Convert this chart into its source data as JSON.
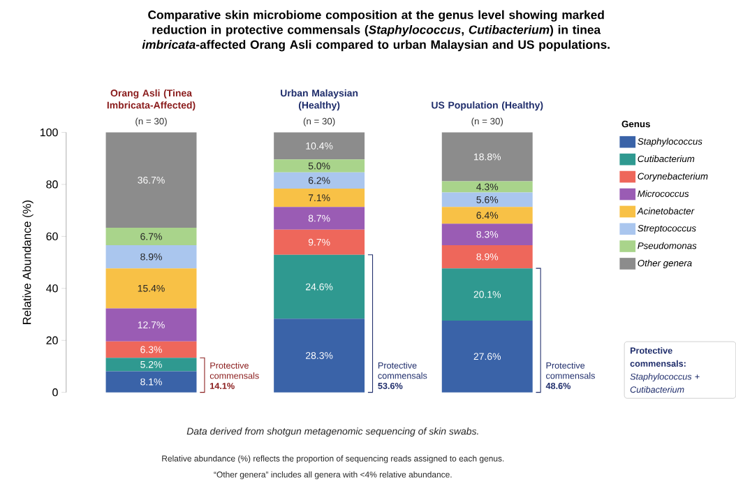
{
  "chart_data": {
    "type": "bar",
    "stacked": true,
    "title": "Comparative skin microbiome composition at the genus level showing marked reduction in protective commensals (*Staphylococcus*, *Cutibacterium*) in tinea *imbricata*-affected Orang Asli compared to urban Malaysian and US populations.",
    "ylabel": "Relative Abundance (%)",
    "legend_title": "Genus",
    "legend": "right",
    "categories": [
      "Orang Asli (Tinea Imbricata-Affected)",
      "Urban Malaysian (Healthy)",
      "US Population (Healthy)"
    ],
    "ylim": [
      0,
      100
    ],
    "yticks": [
      0,
      20,
      40,
      60,
      80,
      100
    ],
    "series": [
      {
        "name": "Staphylococcus",
        "color": "#3a63a8",
        "values": [
          8.1,
          28.3,
          27.6
        ],
        "value_labels": [
          "8.1%",
          "28.3%",
          "27.6%"
        ]
      },
      {
        "name": "Cutibacterium",
        "color": "#2f9990",
        "values": [
          5.2,
          24.6,
          20.1
        ],
        "value_labels": [
          "5.2%",
          "24.6%",
          "20.1%"
        ]
      },
      {
        "name": "Corynebacterium",
        "color": "#ee675b",
        "values": [
          6.3,
          9.7,
          8.9
        ],
        "value_labels": [
          "6.3%",
          "9.7%",
          "8.9%"
        ]
      },
      {
        "name": "Micrococcus",
        "color": "#9a5cb4",
        "values": [
          12.7,
          8.7,
          8.3
        ],
        "value_labels": [
          "12.7%",
          "8.7%",
          "8.3%"
        ]
      },
      {
        "name": "Acinetobacter",
        "color": "#f8c146",
        "values": [
          15.4,
          7.1,
          6.4
        ],
        "value_labels": [
          "15.4%",
          "7.1%",
          "6.4%"
        ]
      },
      {
        "name": "Streptococcus",
        "color": "#aac6ee",
        "values": [
          8.9,
          6.2,
          5.6
        ],
        "value_labels": [
          "8.9%",
          "6.2%",
          "5.6%"
        ]
      },
      {
        "name": "Pseudomonas",
        "color": "#a9d48b",
        "values": [
          6.7,
          5.0,
          4.3
        ],
        "value_labels": [
          "6.7%",
          "5.0%",
          "4.3%"
        ]
      },
      {
        "name": "Other genera",
        "color": "#8c8c8c",
        "values": [
          36.7,
          10.4,
          18.8
        ],
        "value_labels": [
          "36.7%",
          "10.4%",
          "18.8%"
        ]
      }
    ],
    "annotations": [
      "(n = 30)",
      "(n = 30)",
      "(n = 30)",
      "Protective commensals **14.1%**",
      "Protective commensals **53.6%**",
      "Protective commensals **48.6%**",
      "**Protective commensals:** *Staphylococcus* + *Cutibacterium*",
      "*Data derived from shotgun metagenomic sequencing of skin swabs.*",
      "Relative abundance (%) reflects the proportion of sequencing reads assigned to each genus.",
      "“Other genera” includes all genera with <4% relative abundance."
    ]
  }
}
